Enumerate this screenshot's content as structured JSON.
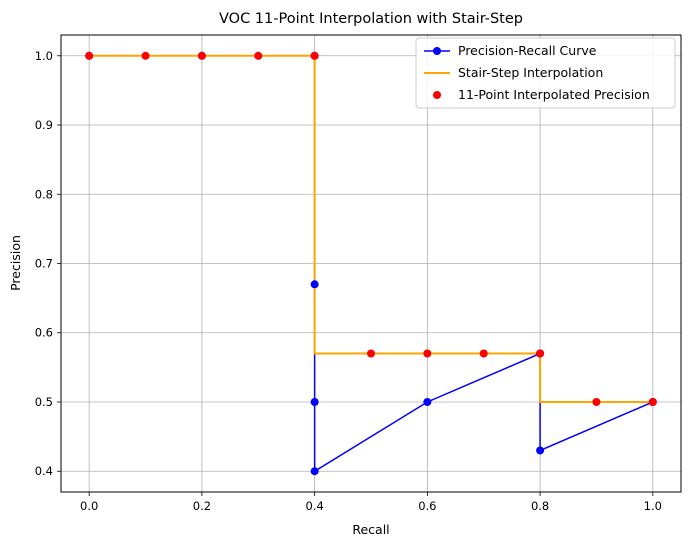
{
  "chart_data": {
    "type": "line",
    "title": "VOC 11-Point Interpolation with Stair-Step",
    "xlabel": "Recall",
    "ylabel": "Precision",
    "xlim": [
      -0.05,
      1.05
    ],
    "ylim": [
      0.37,
      1.03
    ],
    "xticks": [
      "0.0",
      "0.2",
      "0.4",
      "0.6",
      "0.8",
      "1.0"
    ],
    "xtick_values": [
      0.0,
      0.2,
      0.4,
      0.6,
      0.8,
      1.0
    ],
    "yticks": [
      "0.4",
      "0.5",
      "0.6",
      "0.7",
      "0.8",
      "0.9",
      "1.0"
    ],
    "ytick_values": [
      0.4,
      0.5,
      0.6,
      0.7,
      0.8,
      0.9,
      1.0
    ],
    "grid": true,
    "legend_position": "top-right",
    "series": [
      {
        "name": "Precision-Recall Curve",
        "color": "#0000ff",
        "style": "line-marker",
        "x": [
          0.0,
          0.2,
          0.4,
          0.4,
          0.4,
          0.4,
          0.6,
          0.8,
          0.8,
          1.0
        ],
        "y": [
          1.0,
          1.0,
          1.0,
          0.67,
          0.5,
          0.4,
          0.5,
          0.57,
          0.43,
          0.5
        ]
      },
      {
        "name": "Stair-Step Interpolation",
        "color": "#ffa500",
        "style": "step",
        "x": [
          0.0,
          0.4,
          0.4,
          0.8,
          0.8,
          1.0
        ],
        "y": [
          1.0,
          1.0,
          0.57,
          0.57,
          0.5,
          0.5
        ]
      },
      {
        "name": "11-Point Interpolated Precision",
        "color": "#ff0000",
        "style": "marker",
        "x": [
          0.0,
          0.1,
          0.2,
          0.3,
          0.4,
          0.5,
          0.6,
          0.7,
          0.8,
          0.9,
          1.0
        ],
        "y": [
          1.0,
          1.0,
          1.0,
          1.0,
          1.0,
          0.57,
          0.57,
          0.57,
          0.57,
          0.5,
          0.5
        ]
      }
    ]
  }
}
